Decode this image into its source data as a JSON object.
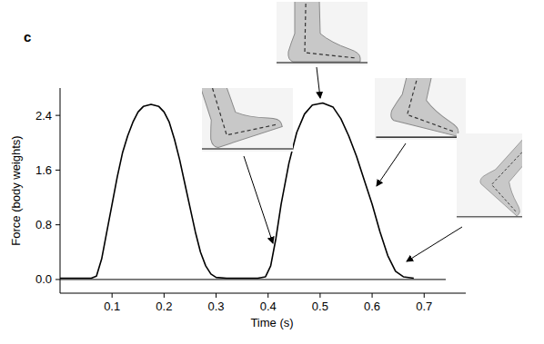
{
  "chart_data": {
    "type": "line",
    "title": "c",
    "x_label": "Time (s)",
    "y_label": "Force (body weights)",
    "color": "#000000",
    "x": [
      0.0,
      0.06,
      0.07,
      0.08,
      0.09,
      0.1,
      0.11,
      0.12,
      0.13,
      0.14,
      0.15,
      0.16,
      0.175,
      0.19,
      0.2,
      0.21,
      0.22,
      0.23,
      0.24,
      0.25,
      0.26,
      0.27,
      0.28,
      0.29,
      0.3,
      0.32,
      0.38,
      0.395,
      0.405,
      0.415,
      0.425,
      0.44,
      0.455,
      0.47,
      0.485,
      0.505,
      0.525,
      0.54,
      0.555,
      0.57,
      0.585,
      0.6,
      0.615,
      0.63,
      0.645,
      0.66,
      0.68
    ],
    "values": [
      0.02,
      0.02,
      0.05,
      0.3,
      0.7,
      1.1,
      1.5,
      1.85,
      2.1,
      2.3,
      2.45,
      2.53,
      2.56,
      2.53,
      2.45,
      2.3,
      2.05,
      1.75,
      1.4,
      1.05,
      0.7,
      0.4,
      0.2,
      0.08,
      0.03,
      0.02,
      0.02,
      0.04,
      0.2,
      0.6,
      1.1,
      1.7,
      2.15,
      2.42,
      2.55,
      2.58,
      2.52,
      2.35,
      2.1,
      1.8,
      1.45,
      1.1,
      0.7,
      0.35,
      0.12,
      0.04,
      0.02
    ],
    "xlim": [
      0,
      0.78
    ],
    "xticks": [
      0.1,
      0.2,
      0.3,
      0.4,
      0.5,
      0.6,
      0.7
    ],
    "ylim": [
      -0.2,
      2.8
    ],
    "yticks": [
      {
        "value": 0,
        "label": "0.0"
      },
      0.8,
      1.6,
      2.4
    ],
    "grid": false
  }
}
